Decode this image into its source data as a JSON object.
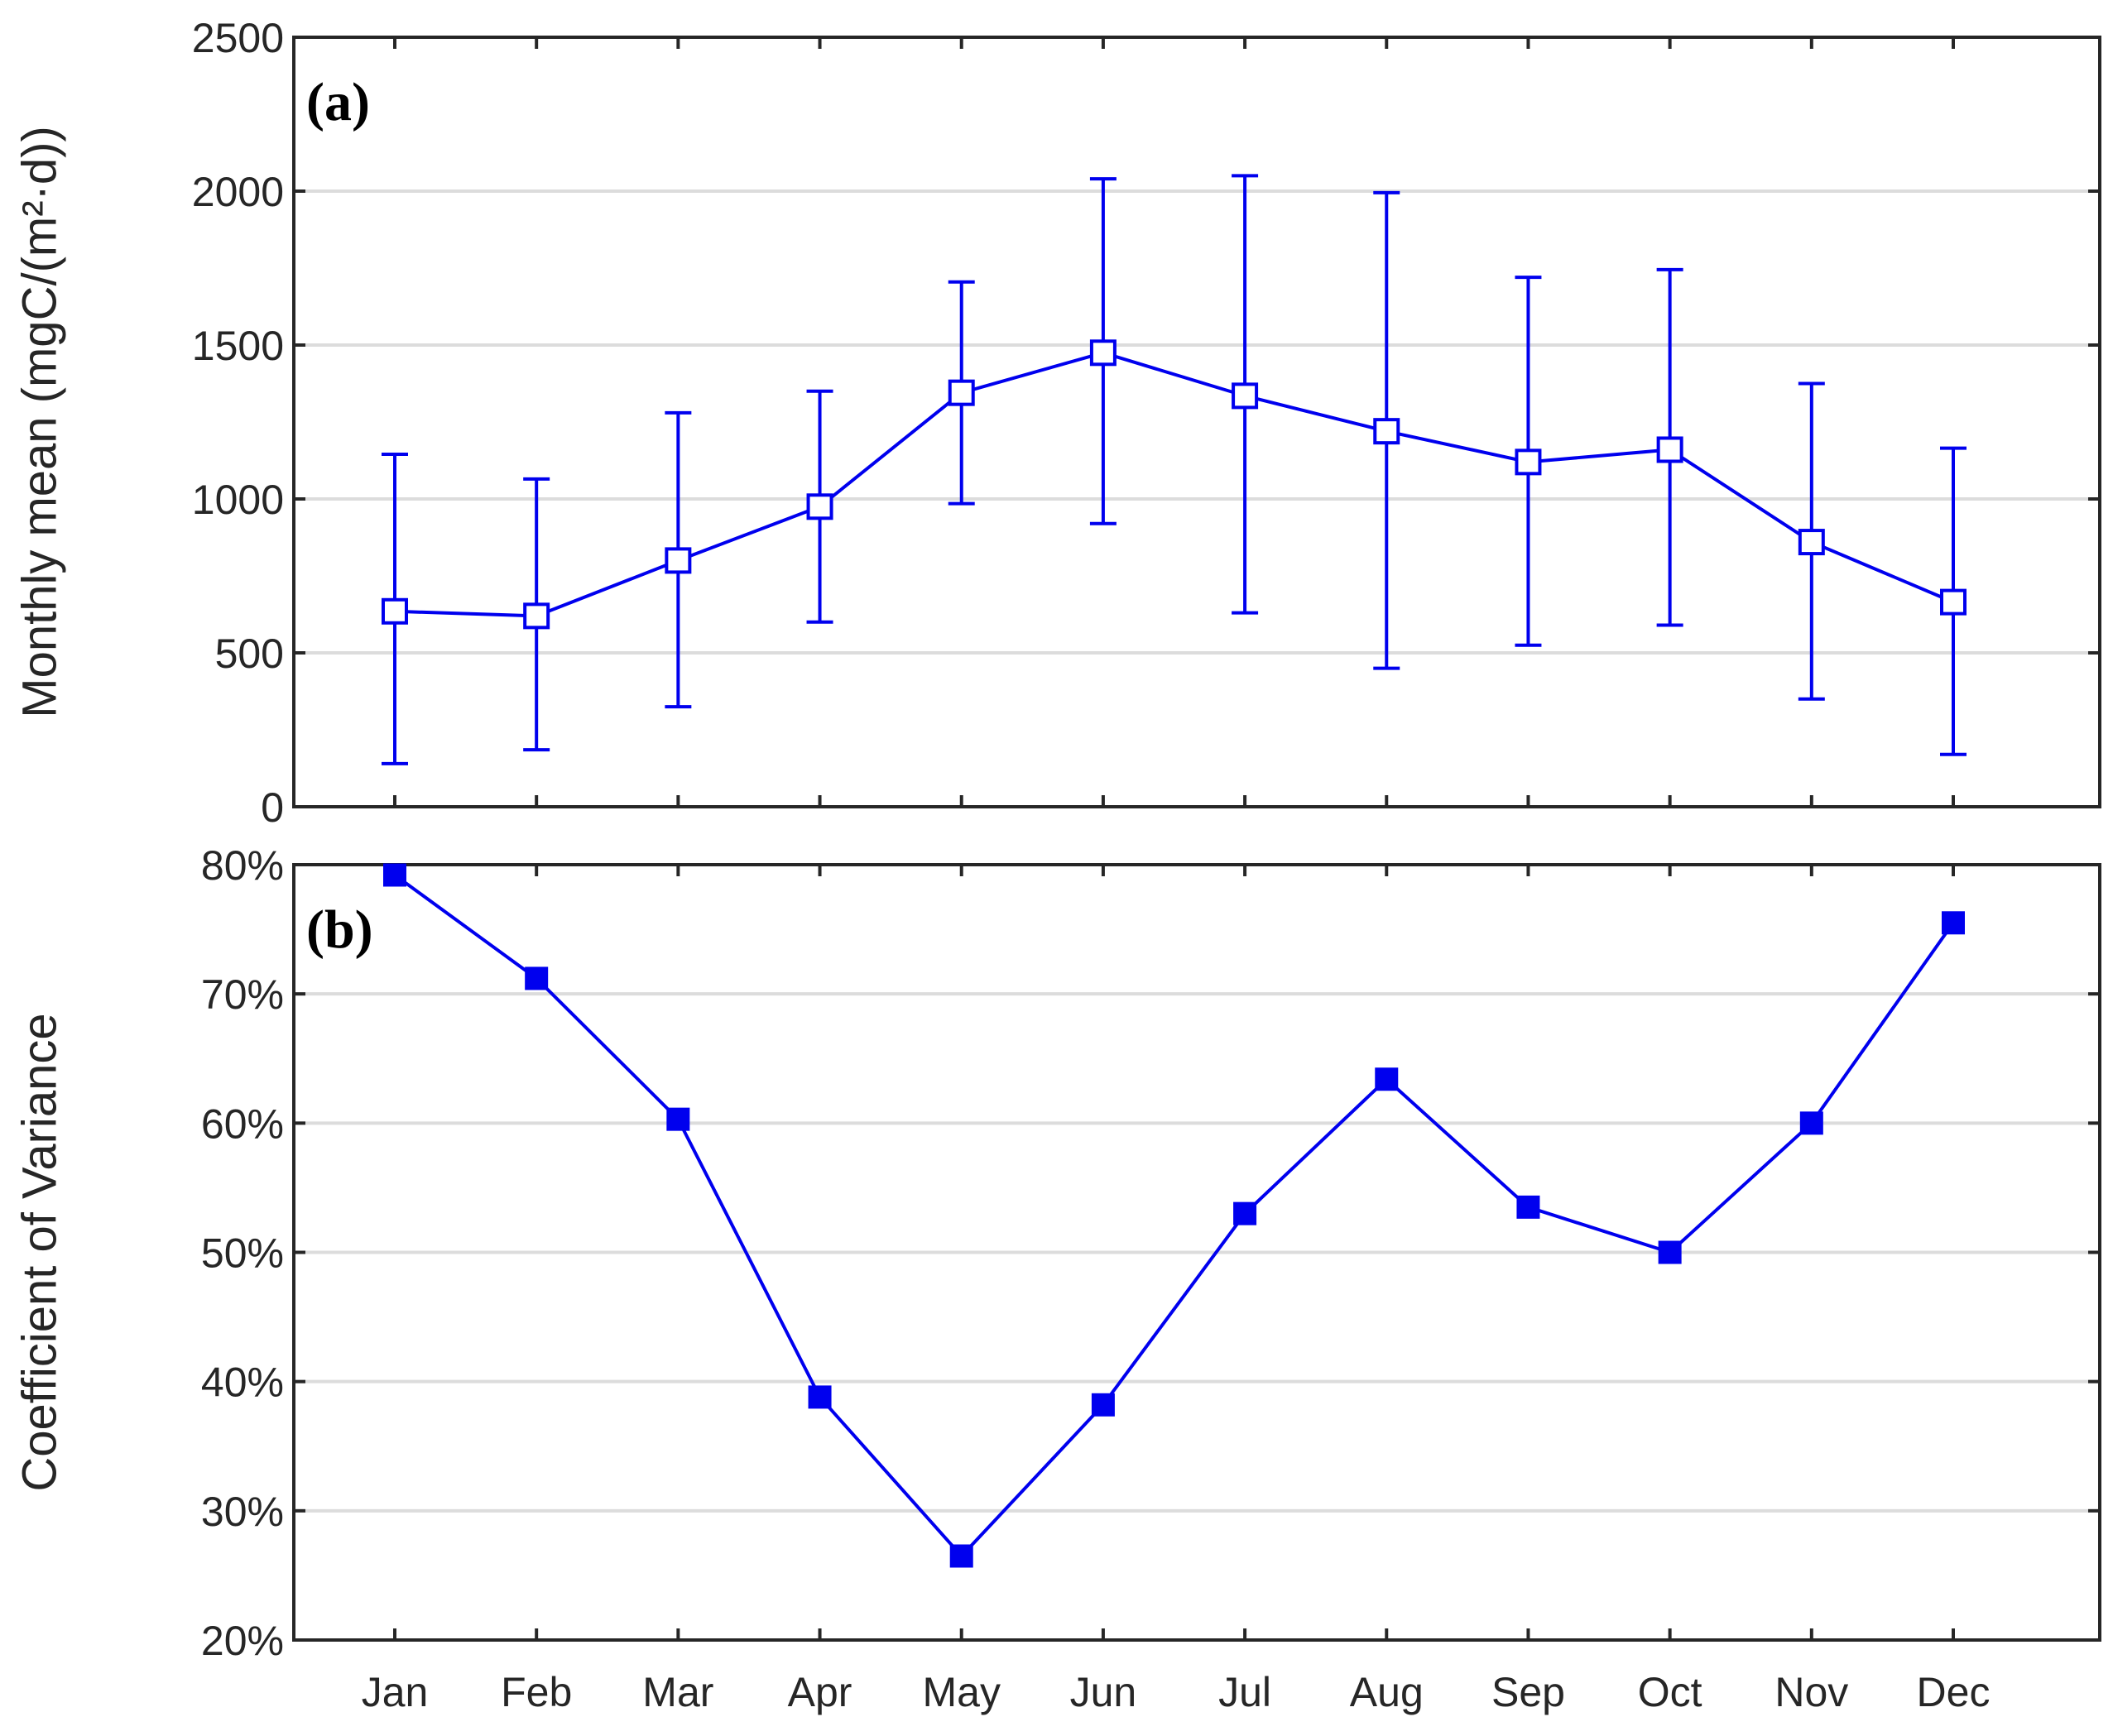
{
  "colors": {
    "series": "#0000ee",
    "axis": "#262626",
    "grid": "#dcdcdc"
  },
  "chart_data": [
    {
      "type": "line",
      "panel_label": "(a)",
      "categories": [
        "Jan",
        "Feb",
        "Mar",
        "Apr",
        "May",
        "Jun",
        "Jul",
        "Aug",
        "Sep",
        "Oct",
        "Nov",
        "Dec"
      ],
      "ylabel": "Monthly mean (mgC/(m²·d))",
      "ylim": [
        0,
        2500
      ],
      "yticks": [
        0,
        500,
        1000,
        1500,
        2000,
        2500
      ],
      "ytick_labels": [
        "0",
        "500",
        "1000",
        "1500",
        "2000",
        "2500"
      ],
      "grid": true,
      "marker": "open-square",
      "series": [
        {
          "values": [
            635,
            620,
            800,
            975,
            1345,
            1475,
            1335,
            1220,
            1120,
            1160,
            860,
            665
          ],
          "error_low": [
            140,
            185,
            325,
            600,
            985,
            920,
            630,
            450,
            525,
            590,
            350,
            170
          ],
          "error_high": [
            1145,
            1065,
            1280,
            1350,
            1705,
            2040,
            2050,
            1995,
            1720,
            1745,
            1375,
            1165
          ]
        }
      ]
    },
    {
      "type": "line",
      "panel_label": "(b)",
      "categories": [
        "Jan",
        "Feb",
        "Mar",
        "Apr",
        "May",
        "Jun",
        "Jul",
        "Aug",
        "Sep",
        "Oct",
        "Nov",
        "Dec"
      ],
      "ylabel": "Coefficient of Variance",
      "ylim": [
        20,
        80
      ],
      "yticks": [
        20,
        30,
        40,
        50,
        60,
        70,
        80
      ],
      "ytick_labels": [
        "20%",
        "30%",
        "40%",
        "50%",
        "60%",
        "70%",
        "80%"
      ],
      "grid": true,
      "marker": "filled-square",
      "series": [
        {
          "values": [
            79.2,
            71.2,
            60.3,
            38.8,
            26.5,
            38.2,
            53.0,
            63.4,
            53.5,
            50.0,
            60.0,
            75.5
          ]
        }
      ]
    }
  ]
}
